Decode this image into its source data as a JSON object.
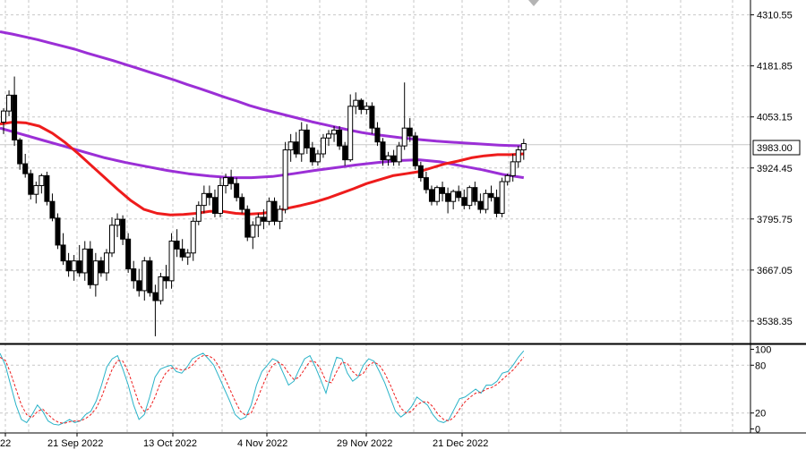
{
  "chart_data": [
    {
      "type": "candlestick",
      "price_axis": {
        "ticks": [
          "4310.55",
          "4181.85",
          "4053.15",
          "3924.45",
          "3795.75",
          "3667.05",
          "3538.35"
        ],
        "tick_values": [
          4310.55,
          4181.85,
          4053.15,
          3924.45,
          3795.75,
          3667.05,
          3538.35
        ],
        "ylim": [
          3484,
          4348
        ]
      },
      "current_price": "3983.00",
      "time_axis": {
        "labels": [
          "22",
          "21 Sep 2022",
          "13 Oct 2022",
          "4 Nov 2022",
          "29 Nov 2022",
          "21 Dec 2022"
        ]
      },
      "grid": true,
      "colors": {
        "up_fill": "#ffffff",
        "down_fill": "#000000",
        "ma_slow": "#9b2fd6",
        "ma_mid": "#9b2fd6",
        "ma_fast": "#ee1c1c"
      },
      "candles": [
        [
          4040,
          4075,
          4010,
          4068
        ],
        [
          4068,
          4120,
          4055,
          4108
        ],
        [
          4108,
          4155,
          3980,
          3995
        ],
        [
          3995,
          4000,
          3920,
          3935
        ],
        [
          3935,
          3960,
          3900,
          3910
        ],
        [
          3910,
          3920,
          3845,
          3858
        ],
        [
          3858,
          3890,
          3835,
          3880
        ],
        [
          3880,
          3910,
          3860,
          3905
        ],
        [
          3905,
          3915,
          3830,
          3840
        ],
        [
          3840,
          3860,
          3790,
          3798
        ],
        [
          3798,
          3810,
          3720,
          3730
        ],
        [
          3730,
          3760,
          3680,
          3690
        ],
        [
          3690,
          3710,
          3650,
          3665
        ],
        [
          3665,
          3705,
          3640,
          3690
        ],
        [
          3690,
          3730,
          3650,
          3660
        ],
        [
          3660,
          3740,
          3640,
          3720
        ],
        [
          3720,
          3740,
          3620,
          3630
        ],
        [
          3630,
          3710,
          3600,
          3690
        ],
        [
          3690,
          3700,
          3650,
          3660
        ],
        [
          3660,
          3720,
          3640,
          3710
        ],
        [
          3710,
          3800,
          3700,
          3780
        ],
        [
          3780,
          3810,
          3750,
          3795
        ],
        [
          3795,
          3805,
          3730,
          3745
        ],
        [
          3745,
          3760,
          3660,
          3670
        ],
        [
          3670,
          3690,
          3620,
          3640
        ],
        [
          3640,
          3670,
          3600,
          3615
        ],
        [
          3615,
          3700,
          3590,
          3690
        ],
        [
          3690,
          3700,
          3600,
          3610
        ],
        [
          3610,
          3630,
          3500,
          3590
        ],
        [
          3590,
          3660,
          3580,
          3650
        ],
        [
          3650,
          3680,
          3620,
          3640
        ],
        [
          3640,
          3760,
          3620,
          3740
        ],
        [
          3740,
          3770,
          3700,
          3720
        ],
        [
          3720,
          3745,
          3690,
          3700
        ],
        [
          3700,
          3720,
          3680,
          3710
        ],
        [
          3710,
          3800,
          3690,
          3790
        ],
        [
          3790,
          3840,
          3780,
          3830
        ],
        [
          3830,
          3880,
          3810,
          3860
        ],
        [
          3860,
          3880,
          3830,
          3850
        ],
        [
          3850,
          3870,
          3800,
          3810
        ],
        [
          3810,
          3900,
          3800,
          3880
        ],
        [
          3880,
          3910,
          3860,
          3900
        ],
        [
          3900,
          3920,
          3870,
          3885
        ],
        [
          3885,
          3900,
          3840,
          3850
        ],
        [
          3850,
          3860,
          3810,
          3820
        ],
        [
          3820,
          3830,
          3740,
          3750
        ],
        [
          3750,
          3790,
          3720,
          3780
        ],
        [
          3780,
          3810,
          3750,
          3800
        ],
        [
          3800,
          3820,
          3770,
          3790
        ],
        [
          3790,
          3850,
          3780,
          3840
        ],
        [
          3840,
          3850,
          3780,
          3790
        ],
        [
          3790,
          3830,
          3770,
          3820
        ],
        [
          3820,
          3990,
          3810,
          3970
        ],
        [
          3970,
          4010,
          3940,
          3990
        ],
        [
          3990,
          4015,
          3950,
          3960
        ],
        [
          3960,
          4040,
          3940,
          4020
        ],
        [
          4020,
          4035,
          3960,
          3975
        ],
        [
          3975,
          3990,
          3930,
          3940
        ],
        [
          3940,
          3970,
          3930,
          3960
        ],
        [
          3960,
          4010,
          3950,
          4000
        ],
        [
          4000,
          4020,
          3980,
          4010
        ],
        [
          4010,
          4030,
          3990,
          4020
        ],
        [
          4020,
          4030,
          3970,
          3980
        ],
        [
          3980,
          3990,
          3930,
          3945
        ],
        [
          3945,
          4110,
          3940,
          4080
        ],
        [
          4080,
          4115,
          4060,
          4095
        ],
        [
          4095,
          4100,
          4060,
          4072
        ],
        [
          4072,
          4090,
          4060,
          4080
        ],
        [
          4080,
          4090,
          4010,
          4025
        ],
        [
          4025,
          4040,
          3980,
          3990
        ],
        [
          3990,
          4000,
          3930,
          3945
        ],
        [
          3945,
          3965,
          3930,
          3955
        ],
        [
          3955,
          3970,
          3930,
          3940
        ],
        [
          3940,
          3990,
          3930,
          3980
        ],
        [
          3980,
          4140,
          3970,
          4025
        ],
        [
          4025,
          4050,
          3990,
          4005
        ],
        [
          4005,
          4015,
          3920,
          3930
        ],
        [
          3930,
          3940,
          3890,
          3900
        ],
        [
          3900,
          3915,
          3860,
          3870
        ],
        [
          3870,
          3880,
          3830,
          3840
        ],
        [
          3840,
          3880,
          3830,
          3875
        ],
        [
          3875,
          3890,
          3840,
          3860
        ],
        [
          3860,
          3875,
          3810,
          3840
        ],
        [
          3840,
          3870,
          3820,
          3865
        ],
        [
          3865,
          3880,
          3840,
          3850
        ],
        [
          3850,
          3870,
          3820,
          3830
        ],
        [
          3830,
          3880,
          3820,
          3875
        ],
        [
          3875,
          3890,
          3830,
          3840
        ],
        [
          3840,
          3860,
          3810,
          3820
        ],
        [
          3820,
          3870,
          3810,
          3860
        ],
        [
          3860,
          3880,
          3840,
          3850
        ],
        [
          3850,
          3870,
          3800,
          3810
        ],
        [
          3810,
          3900,
          3800,
          3890
        ],
        [
          3890,
          3910,
          3880,
          3905
        ],
        [
          3905,
          3960,
          3890,
          3940
        ],
        [
          3940,
          3980,
          3925,
          3970
        ],
        [
          3970,
          3998,
          3945,
          3986
        ]
      ],
      "series": [
        {
          "values": [
            4268,
            4262,
            4255,
            4248,
            4240,
            4232,
            4224,
            4214,
            4205,
            4196,
            4186,
            4176,
            4166,
            4156,
            4146,
            4135,
            4125,
            4114,
            4103,
            4093,
            4082,
            4073,
            4065,
            4057,
            4049,
            4041,
            4034,
            4027,
            4020,
            4014,
            4009,
            4005,
            4001,
            3998,
            3995,
            3992,
            3990,
            3988,
            3986,
            3984,
            3982,
            3981,
            3980
          ]
        },
        {
          "values": [
            4025,
            4010,
            3995,
            3980,
            3965,
            3950,
            3938,
            3928,
            3918,
            3910,
            3904,
            3900,
            3900,
            3903,
            3910,
            3918,
            3925,
            3932,
            3938,
            3943,
            3945,
            3940,
            3930,
            3920,
            3908,
            3900
          ]
        },
        {
          "values": [
            4035,
            4040,
            4038,
            4030,
            4012,
            3988,
            3960,
            3930,
            3900,
            3870,
            3842,
            3820,
            3810,
            3806,
            3807,
            3810,
            3815,
            3815,
            3810,
            3808,
            3810,
            3815,
            3823,
            3830,
            3838,
            3848,
            3860,
            3872,
            3885,
            3895,
            3905,
            3910,
            3915,
            3925,
            3935,
            3942,
            3950,
            3955,
            3958,
            3958,
            3960
          ]
        }
      ]
    },
    {
      "type": "line",
      "name": "stochastic",
      "ticks": [
        "100",
        "80",
        "20",
        "0"
      ],
      "tick_values": [
        100,
        80,
        20,
        0
      ],
      "ylim": [
        -5,
        105
      ],
      "series": [
        {
          "values": [
            95,
            80,
            55,
            30,
            12,
            8,
            18,
            30,
            22,
            10,
            6,
            5,
            8,
            12,
            8,
            10,
            18,
            22,
            35,
            55,
            78,
            88,
            92,
            75,
            55,
            30,
            12,
            18,
            40,
            65,
            75,
            78,
            80,
            72,
            70,
            78,
            88,
            92,
            95,
            88,
            80,
            65,
            50,
            35,
            18,
            12,
            15,
            30,
            55,
            72,
            80,
            88,
            85,
            70,
            55,
            60,
            75,
            88,
            92,
            78,
            62,
            45,
            70,
            90,
            88,
            70,
            60,
            65,
            80,
            88,
            85,
            72,
            58,
            40,
            22,
            15,
            20,
            28,
            40,
            35,
            30,
            18,
            10,
            8,
            12,
            25,
            38,
            40,
            45,
            50,
            45,
            55,
            55,
            60,
            70,
            72,
            80,
            90,
            98
          ]
        },
        {
          "values": [
            90,
            86,
            70,
            50,
            30,
            18,
            14,
            22,
            25,
            18,
            12,
            8,
            7,
            9,
            10,
            10,
            13,
            18,
            26,
            40,
            58,
            75,
            86,
            85,
            72,
            52,
            32,
            22,
            26,
            40,
            58,
            70,
            76,
            76,
            74,
            75,
            80,
            88,
            92,
            92,
            88,
            78,
            65,
            50,
            35,
            22,
            17,
            20,
            35,
            52,
            68,
            80,
            84,
            80,
            70,
            62,
            65,
            75,
            85,
            84,
            75,
            60,
            58,
            72,
            84,
            82,
            72,
            66,
            70,
            80,
            84,
            80,
            70,
            56,
            40,
            26,
            20,
            22,
            30,
            34,
            34,
            28,
            18,
            12,
            10,
            15,
            25,
            34,
            40,
            45,
            46,
            50,
            52,
            56,
            62,
            68,
            74,
            82,
            90
          ]
        }
      ]
    }
  ]
}
